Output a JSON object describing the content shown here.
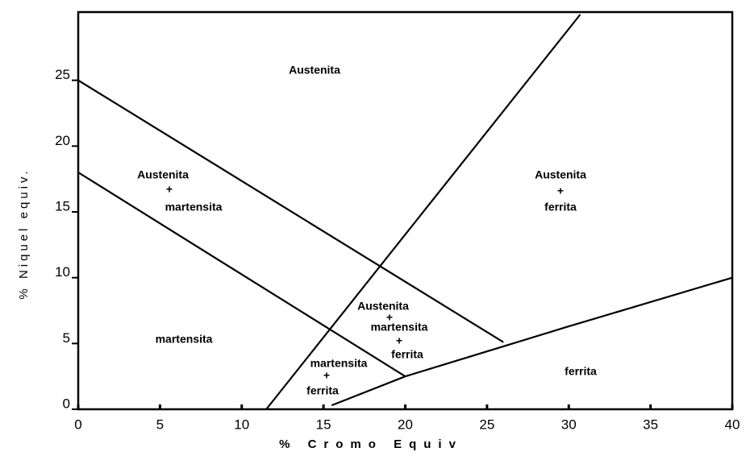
{
  "chart_data": {
    "type": "line",
    "xlabel": "% Cromo Equiv",
    "ylabel": "% Niquel equiv.",
    "xlim": [
      0,
      40
    ],
    "xticks": [
      0,
      5,
      10,
      15,
      20,
      25,
      30,
      35,
      40
    ],
    "ylim": [
      0,
      30
    ],
    "yticks": [
      0,
      5,
      10,
      15,
      20,
      25
    ],
    "series": [
      {
        "color": "#000000",
        "x": [
          0,
          26
        ],
        "values": [
          25,
          5.1
        ]
      },
      {
        "color": "#000000",
        "x": [
          0,
          20
        ],
        "values": [
          18,
          2.5
        ]
      },
      {
        "color": "#000000",
        "x": [
          11.5,
          30.7
        ],
        "values": [
          0,
          30
        ]
      },
      {
        "color": "#000000",
        "x": [
          15.5,
          20,
          30,
          40
        ],
        "values": [
          0.3,
          2.5,
          6.3,
          10
        ]
      }
    ],
    "annotations": [
      [
        "Austenita"
      ],
      [
        "Austenita",
        "+",
        "martensita"
      ],
      [
        "Austenita",
        "+",
        "ferrita"
      ],
      [
        "Austenita",
        "+",
        "martensita",
        "+",
        "ferrita"
      ],
      [
        "martensita",
        "+",
        "ferrita"
      ],
      [
        "martensita"
      ],
      [
        "ferrita"
      ]
    ]
  }
}
